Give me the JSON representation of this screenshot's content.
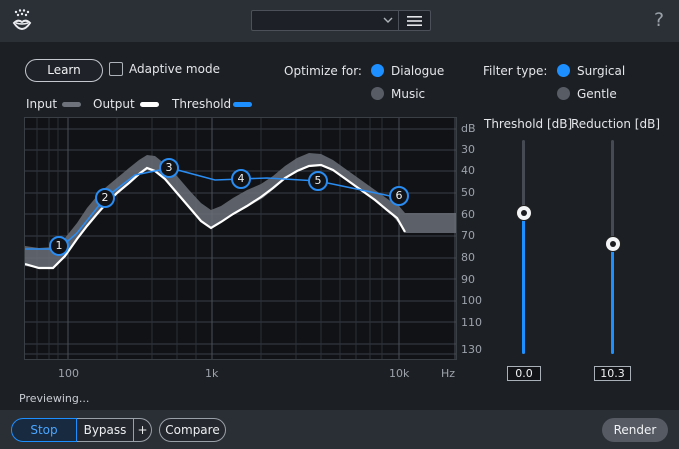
{
  "header": {
    "preset_value": "",
    "help_label": "?"
  },
  "controls": {
    "learn_label": "Learn",
    "adaptive_label": "Adaptive mode",
    "adaptive_checked": false,
    "optimize_label": "Optimize for:",
    "optimize_options": [
      {
        "label": "Dialogue",
        "selected": true
      },
      {
        "label": "Music",
        "selected": false
      }
    ],
    "filter_label": "Filter type:",
    "filter_options": [
      {
        "label": "Surgical",
        "selected": true
      },
      {
        "label": "Gentle",
        "selected": false
      }
    ]
  },
  "legend": {
    "input_label": "Input",
    "output_label": "Output",
    "threshold_label": "Threshold",
    "input_color": "#6e737b",
    "output_color": "#ffffff",
    "threshold_color": "#1e8fff"
  },
  "graph": {
    "db_unit": "dB",
    "db_ticks": [
      "30",
      "40",
      "50",
      "60",
      "70",
      "80",
      "90",
      "100",
      "110",
      "130"
    ],
    "freq_ticks": [
      "100",
      "1k",
      "10k"
    ],
    "freq_unit": "Hz",
    "nodes": [
      "1",
      "2",
      "3",
      "4",
      "5",
      "6"
    ]
  },
  "sliders": {
    "threshold_label": "Threshold [dB]",
    "threshold_value": "0.0",
    "reduction_label": "Reduction [dB]",
    "reduction_value": "10.3",
    "accent": "#1e8fff"
  },
  "status": {
    "text": "Previewing..."
  },
  "footer": {
    "stop_label": "Stop",
    "bypass_label": "Bypass",
    "plus_label": "+",
    "compare_label": "Compare",
    "render_label": "Render"
  }
}
